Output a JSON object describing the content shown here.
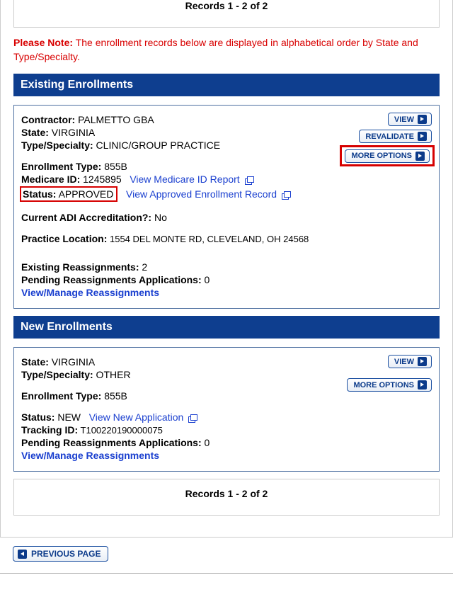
{
  "records_top": "Records 1 - 2 of 2",
  "records_bottom": "Records 1 - 2 of 2",
  "note": {
    "label": "Please Note:",
    "text": " The enrollment records below are displayed in alphabetical order by State and Type/Specialty."
  },
  "sections": {
    "existing_title": "Existing Enrollments",
    "new_title": "New Enrollments"
  },
  "existing": {
    "contractor_label": "Contractor:",
    "contractor": " PALMETTO GBA",
    "state_label": "State:",
    "state": " VIRGINIA",
    "type_label": "Type/Specialty:",
    "type": " CLINIC/GROUP PRACTICE",
    "enroll_type_label": "Enrollment Type:",
    "enroll_type": " 855B",
    "medicare_id_label": "Medicare ID:",
    "medicare_id": " 1245895",
    "view_med_id_link": "View Medicare ID Report",
    "status_label": "Status:",
    "status": " APPROVED",
    "view_approved_link": "View Approved Enrollment Record",
    "adi_label": "Current ADI Accreditation?:",
    "adi": "  No",
    "practice_label": "Practice Location:",
    "practice": " 1554 DEL MONTE RD, CLEVELAND, OH 24568",
    "reassign_label": "Existing Reassignments:",
    "reassign": "  2",
    "pending_label": "Pending Reassignments Applications:",
    "pending": "  0",
    "manage_link": "View/Manage Reassignments",
    "buttons": {
      "view": "VIEW",
      "revalidate": "REVALIDATE",
      "more": "MORE OPTIONS"
    }
  },
  "newenroll": {
    "state_label": "State:",
    "state": " VIRGINIA",
    "type_label": "Type/Specialty:",
    "type": " OTHER",
    "enroll_type_label": "Enrollment Type:",
    "enroll_type": " 855B",
    "status_label": "Status:",
    "status": " NEW",
    "view_new_link": "View New Application",
    "tracking_label": "Tracking ID:",
    "tracking": " T100220190000075",
    "pending_label": "Pending Reassignments Applications:",
    "pending": " 0",
    "manage_link": "View/Manage Reassignments",
    "buttons": {
      "view": "VIEW",
      "more": "MORE OPTIONS"
    }
  },
  "prev_button": "PREVIOUS PAGE"
}
